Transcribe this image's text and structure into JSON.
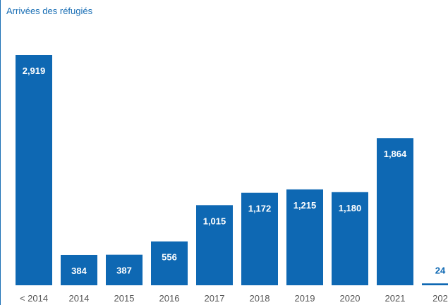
{
  "chart_data": {
    "type": "bar",
    "title": "Arrivées des réfugiés",
    "xlabel": "",
    "ylabel": "",
    "categories": [
      "< 2014",
      "2014",
      "2015",
      "2016",
      "2017",
      "2018",
      "2019",
      "2020",
      "2021",
      "202"
    ],
    "values": [
      2919,
      384,
      387,
      556,
      1015,
      1172,
      1215,
      1180,
      1864,
      24
    ],
    "value_labels": [
      "2,919",
      "384",
      "387",
      "556",
      "1,015",
      "1,172",
      "1,215",
      "1,180",
      "1,864",
      "24"
    ],
    "ylim": [
      0,
      2919
    ],
    "grid": false,
    "legend": "none",
    "colors": {
      "bar": "#0e68b3",
      "label_inside": "#ffffff",
      "label_outside": "#0e68b3",
      "title": "#1a6fb5",
      "axis_line": "#0e68b3"
    }
  }
}
